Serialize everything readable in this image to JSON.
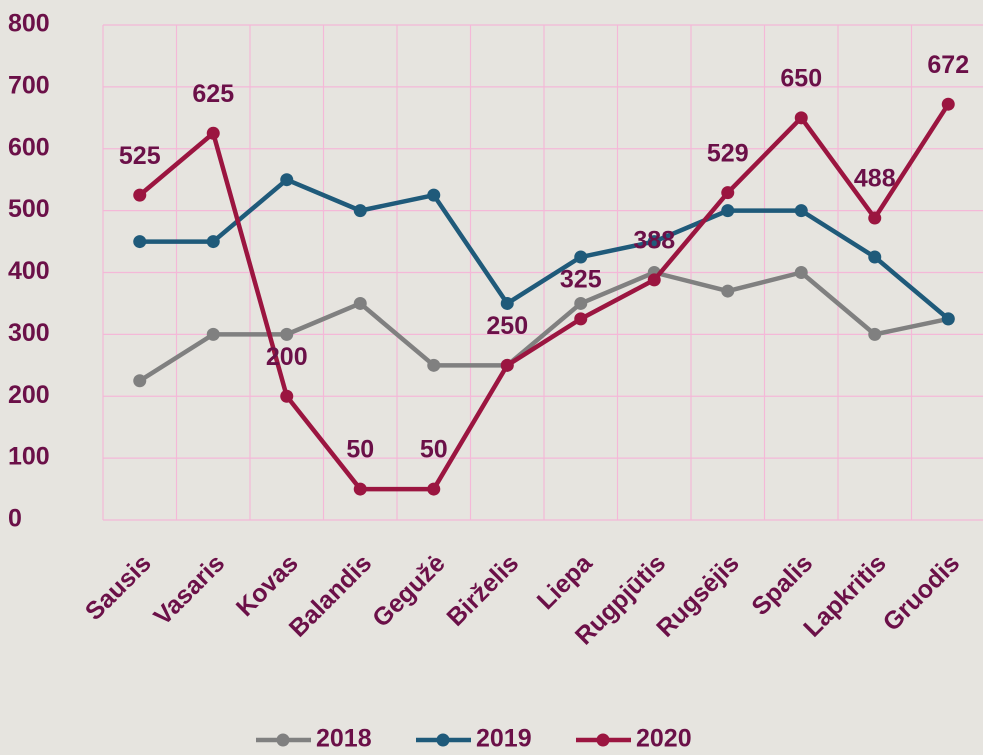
{
  "chart_data": {
    "type": "line",
    "categories": [
      "Sausis",
      "Vasaris",
      "Kovas",
      "Balandis",
      "Gegužė",
      "Birželis",
      "Liepa",
      "Rugpjūtis",
      "Rugsėjis",
      "Spalis",
      "Lapkritis",
      "Gruodis"
    ],
    "series": [
      {
        "name": "2018",
        "color": "#808080",
        "show_labels": false,
        "values": [
          225,
          300,
          300,
          350,
          250,
          250,
          350,
          400,
          370,
          400,
          300,
          325
        ]
      },
      {
        "name": "2019",
        "color": "#1f5a7a",
        "show_labels": false,
        "values": [
          450,
          450,
          550,
          500,
          525,
          350,
          425,
          450,
          500,
          500,
          425,
          325
        ]
      },
      {
        "name": "2020",
        "color": "#9b1540",
        "show_labels": true,
        "values": [
          525,
          625,
          200,
          50,
          50,
          250,
          325,
          388,
          529,
          650,
          488,
          672
        ]
      }
    ],
    "ylim": [
      0,
      800
    ],
    "yticks": [
      0,
      100,
      200,
      300,
      400,
      500,
      600,
      700,
      800
    ],
    "grid": true,
    "legend": "bottom"
  }
}
